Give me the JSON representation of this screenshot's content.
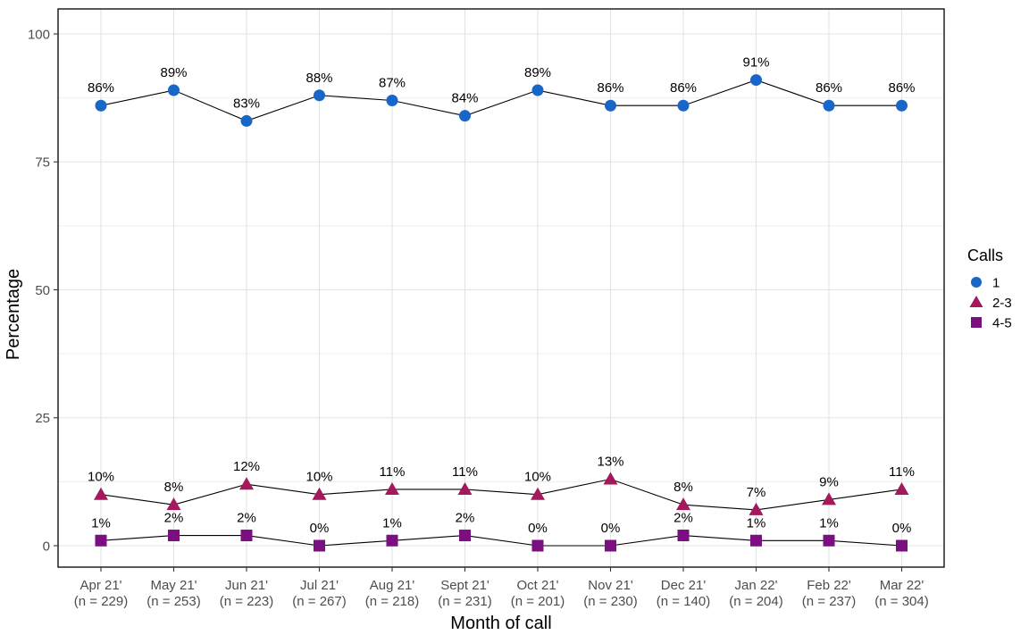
{
  "chart_data": {
    "type": "line",
    "title": "",
    "xlabel": "Month of call",
    "ylabel": "Percentage",
    "legend_title": "Calls",
    "legend_position": "right",
    "grid": true,
    "ylim": [
      0,
      100
    ],
    "yticks": [
      0,
      25,
      50,
      75,
      100
    ],
    "categories": [
      "Apr 21'",
      "May 21'",
      "Jun 21'",
      "Jul 21'",
      "Aug 21'",
      "Sept 21'",
      "Oct 21'",
      "Nov 21'",
      "Dec 21'",
      "Jan 22'",
      "Feb 22'",
      "Mar 22'"
    ],
    "sample_sizes": [
      229,
      253,
      223,
      267,
      218,
      231,
      201,
      230,
      140,
      204,
      237,
      304
    ],
    "sample_size_format": "(n = {n})",
    "label_format": "{v}%",
    "series": [
      {
        "name": "1",
        "marker": "circle",
        "color": "#1766C8",
        "values": [
          86,
          89,
          83,
          88,
          87,
          84,
          89,
          86,
          86,
          91,
          86,
          86
        ]
      },
      {
        "name": "2-3",
        "marker": "triangle",
        "color": "#A3195B",
        "values": [
          10,
          8,
          12,
          10,
          11,
          11,
          10,
          13,
          8,
          7,
          9,
          11
        ]
      },
      {
        "name": "4-5",
        "marker": "square",
        "color": "#7B0E80",
        "values": [
          1,
          2,
          2,
          0,
          1,
          2,
          0,
          0,
          2,
          1,
          1,
          0
        ]
      }
    ],
    "line_color": "#000000",
    "colors": {
      "grid_major": "#E3E3E3",
      "grid_minor": "#EFEFEF",
      "panel_border": "#000000",
      "tick_mark": "#333333",
      "tick_text": "#4D4D4D",
      "axis_title_text": "#000000",
      "background": "#FFFFFF"
    }
  }
}
